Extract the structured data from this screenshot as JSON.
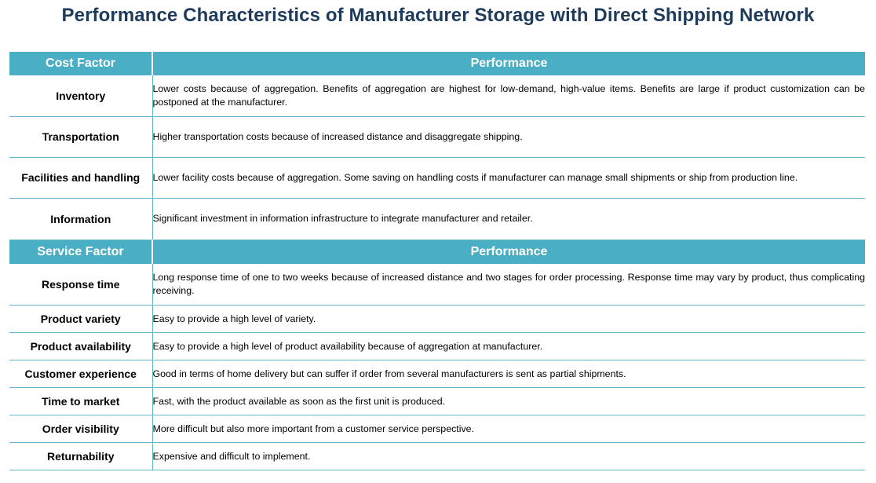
{
  "title": "Performance Characteristics of Manufacturer Storage with Direct Shipping Network",
  "cost_header": {
    "factor": "Cost Factor",
    "performance": "Performance"
  },
  "cost_rows": [
    {
      "factor": "Inventory",
      "performance": "Lower costs because of aggregation. Benefits of aggregation are highest for low-demand, high-value items. Benefits are large if product customization can be postponed at the manufacturer."
    },
    {
      "factor": "Transportation",
      "performance": "Higher transportation costs because of increased distance and disaggregate shipping."
    },
    {
      "factor": "Facilities and handling",
      "performance": "Lower facility costs because of aggregation. Some saving on handling costs if manufacturer can  manage small shipments or ship from production line."
    },
    {
      "factor": "Information",
      "performance": "Significant investment in information infrastructure to integrate manufacturer and retailer."
    }
  ],
  "service_header": {
    "factor": "Service Factor",
    "performance": "Performance"
  },
  "service_rows": [
    {
      "factor": "Response time",
      "performance": "Long response time of one to two weeks because of increased distance and two stages for order processing. Response time may vary by product, thus complicating receiving."
    },
    {
      "factor": "Product variety",
      "performance": "Easy to provide a high level of variety."
    },
    {
      "factor": "Product availability",
      "performance": "Easy to provide a high level of product availability because of aggregation at manufacturer."
    },
    {
      "factor": "Customer experience",
      "performance": "Good in terms of home delivery but can suffer if order from several manufacturers is sent as partial shipments."
    },
    {
      "factor": "Time to market",
      "performance": "Fast, with the product available as soon as the first unit is produced."
    },
    {
      "factor": "Order visibility",
      "performance": "More difficult but also more important from a customer service perspective."
    },
    {
      "factor": "Returnability",
      "performance": "Expensive and difficult to implement."
    }
  ],
  "colors": {
    "header_bg": "#4aaec4",
    "title_text": "#1f3b5a",
    "rule": "#62b7cb"
  }
}
